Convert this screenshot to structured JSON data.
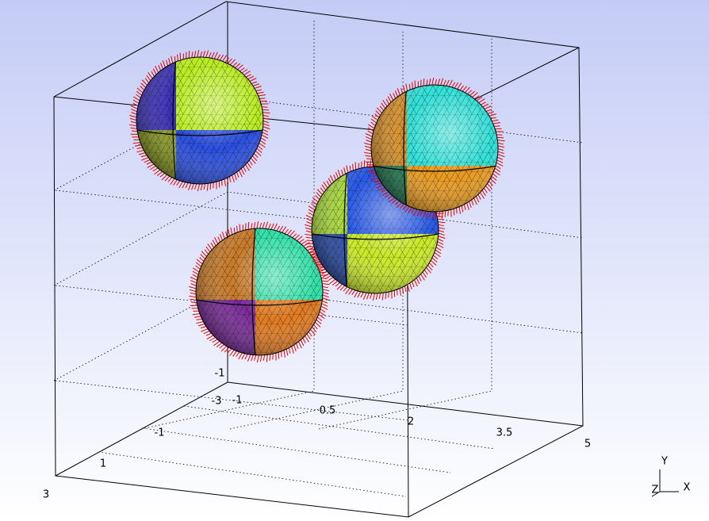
{
  "axes": {
    "y_ticks": [
      "-1"
    ],
    "x_ticks": [
      "-1",
      "0.5",
      "2",
      "3.5",
      "5"
    ],
    "z_ticks": [
      "3",
      "1",
      "-1",
      "-3"
    ]
  },
  "triad": {
    "labels": [
      "Y",
      "Z",
      "X"
    ]
  }
}
